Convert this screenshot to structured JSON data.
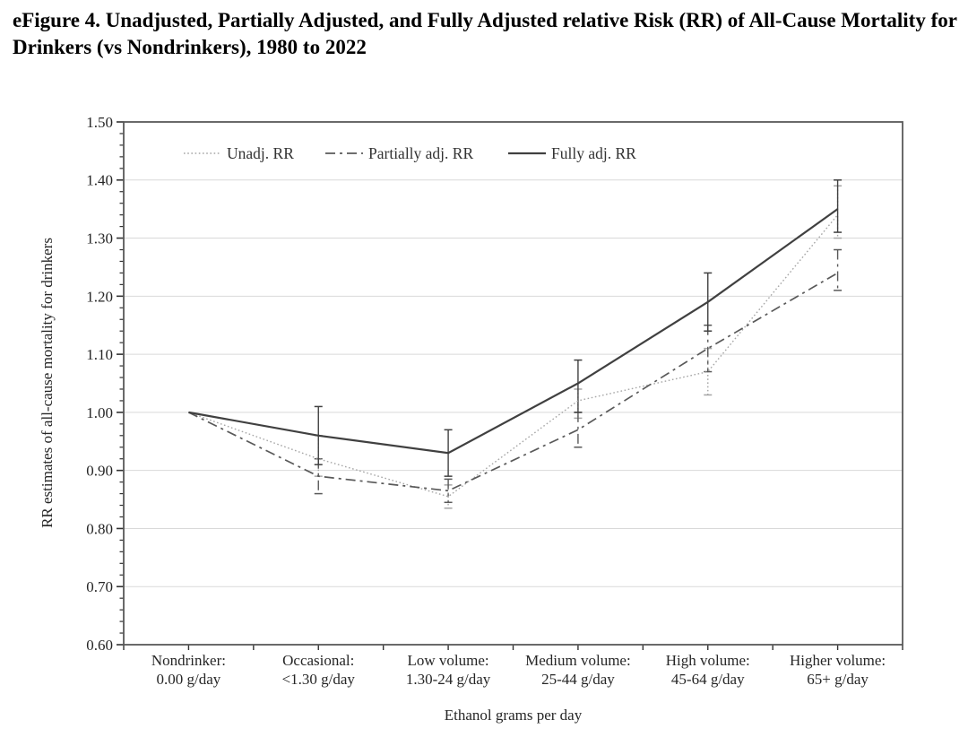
{
  "title": "eFigure 4. Unadjusted, Partially Adjusted, and Fully Adjusted relative Risk (RR) of All-Cause Mortality for Drinkers (vs Nondrinkers), 1980 to 2022",
  "chart_data": {
    "type": "line",
    "title": "eFigure 4. Unadjusted, Partially Adjusted, and Fully Adjusted relative Risk (RR) of All-Cause Mortality for Drinkers (vs Nondrinkers), 1980 to 2022",
    "xlabel": "Ethanol grams per day",
    "ylabel": "RR estimates of all-cause mortality for drinkers",
    "ylim": [
      0.6,
      1.5
    ],
    "ytick_step": 0.1,
    "yminor_step": 0.02,
    "grid": true,
    "legend_position": "top-inside",
    "categories": [
      {
        "label": "Nondrinker:",
        "sublabel": "0.00 g/day"
      },
      {
        "label": "Occasional:",
        "sublabel": "<1.30 g/day"
      },
      {
        "label": "Low volume:",
        "sublabel": "1.30-24 g/day"
      },
      {
        "label": "Medium volume:",
        "sublabel": "25-44 g/day"
      },
      {
        "label": "High volume:",
        "sublabel": "45-64 g/day"
      },
      {
        "label": "Higher volume:",
        "sublabel": "65+ g/day"
      }
    ],
    "series": [
      {
        "name": "Unadj. RR",
        "style": "dotted",
        "color": "#a6a6a6",
        "values": [
          1.0,
          0.92,
          0.855,
          1.02,
          1.07,
          1.34
        ],
        "ci_low": [
          null,
          0.89,
          0.835,
          0.99,
          1.03,
          1.3
        ],
        "ci_high": [
          null,
          0.96,
          0.875,
          1.04,
          1.11,
          1.39
        ]
      },
      {
        "name": "Partially adj. RR",
        "style": "dashdot",
        "color": "#595959",
        "values": [
          1.0,
          0.89,
          0.865,
          0.97,
          1.11,
          1.24
        ],
        "ci_low": [
          null,
          0.86,
          0.845,
          0.94,
          1.07,
          1.21
        ],
        "ci_high": [
          null,
          0.92,
          0.885,
          1.0,
          1.15,
          1.28
        ]
      },
      {
        "name": "Fully adj. RR",
        "style": "solid",
        "color": "#404040",
        "values": [
          1.0,
          0.96,
          0.93,
          1.05,
          1.19,
          1.35
        ],
        "ci_low": [
          null,
          0.91,
          0.89,
          1.0,
          1.14,
          1.31
        ],
        "ci_high": [
          null,
          1.01,
          0.97,
          1.09,
          1.24,
          1.4
        ]
      }
    ],
    "colors": {
      "grid": "#d9d9d9",
      "plot_border": "#595959",
      "axis_text": "#262626",
      "legend_text": "#333333"
    }
  }
}
